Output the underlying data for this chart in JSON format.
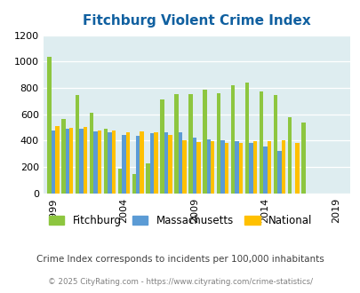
{
  "title": "Fitchburg Violent Crime Index",
  "fitchburg_vals": [
    1035,
    565,
    745,
    610,
    490,
    185,
    150,
    230,
    710,
    750,
    755,
    785,
    760,
    820,
    840,
    775,
    745,
    580,
    535
  ],
  "massachusetts_vals": [
    480,
    490,
    490,
    470,
    465,
    445,
    435,
    455,
    460,
    460,
    425,
    410,
    400,
    395,
    380,
    355,
    325,
    0,
    0
  ],
  "national_vals": [
    510,
    500,
    505,
    480,
    475,
    465,
    470,
    465,
    445,
    400,
    390,
    395,
    385,
    385,
    395,
    395,
    400,
    380,
    0
  ],
  "start_year": 1999,
  "fitchburg_color": "#8dc63f",
  "massachusetts_color": "#5b9bd5",
  "national_color": "#ffc000",
  "bg_color": "#deedf0",
  "title_color": "#1060a0",
  "ylabel_max": 1200,
  "yticks": [
    0,
    200,
    400,
    600,
    800,
    1000,
    1200
  ],
  "x_tick_years": [
    1999,
    2004,
    2009,
    2014,
    2019
  ],
  "subtitle": "Crime Index corresponds to incidents per 100,000 inhabitants",
  "footer": "© 2025 CityRating.com - https://www.cityrating.com/crime-statistics/",
  "subtitle_color": "#404040",
  "footer_color": "#808080"
}
